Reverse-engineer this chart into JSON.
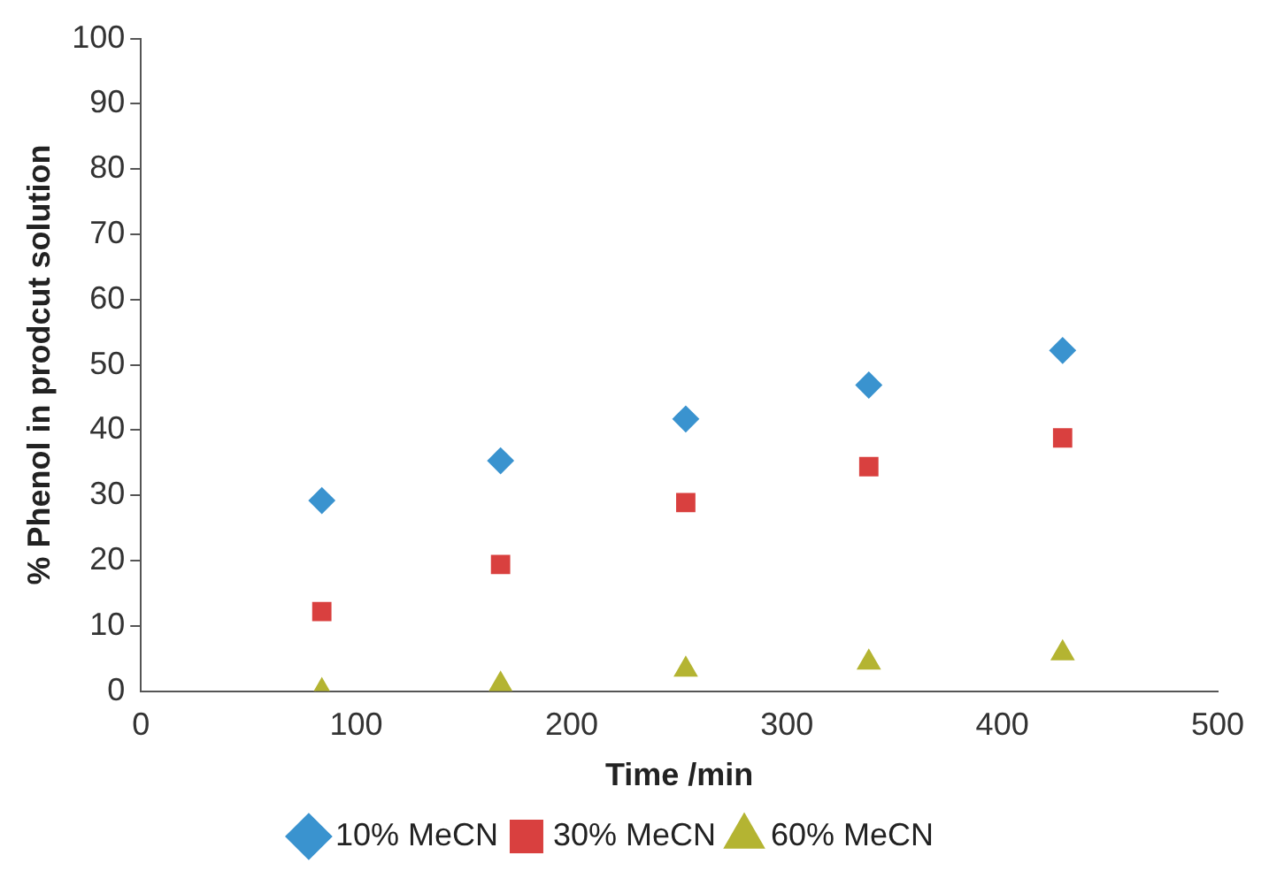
{
  "chart_data": {
    "type": "scatter",
    "xlabel": "Time /min",
    "ylabel": "% Phenol in prodcut solution",
    "x": [
      84,
      167,
      253,
      338,
      428
    ],
    "series": [
      {
        "name": "10% MeCN",
        "color": "#3a93cf",
        "marker": "diamond",
        "values": [
          29.2,
          35.3,
          41.7,
          46.9,
          52.2
        ]
      },
      {
        "name": "30% MeCN",
        "color": "#d9403f",
        "marker": "square",
        "values": [
          12.2,
          19.4,
          28.9,
          34.4,
          38.8
        ]
      },
      {
        "name": "60% MeCN",
        "color": "#b4b432",
        "marker": "triangle",
        "values": [
          0,
          1,
          3.3,
          4.4,
          5.8
        ]
      }
    ],
    "xlim": [
      0,
      500
    ],
    "xticks": [
      0,
      100,
      200,
      300,
      400,
      500
    ],
    "ylim": [
      0,
      100
    ],
    "yticks": [
      0,
      10,
      20,
      30,
      40,
      50,
      60,
      70,
      80,
      90,
      100
    ],
    "grid": false,
    "legend": "bottom"
  }
}
